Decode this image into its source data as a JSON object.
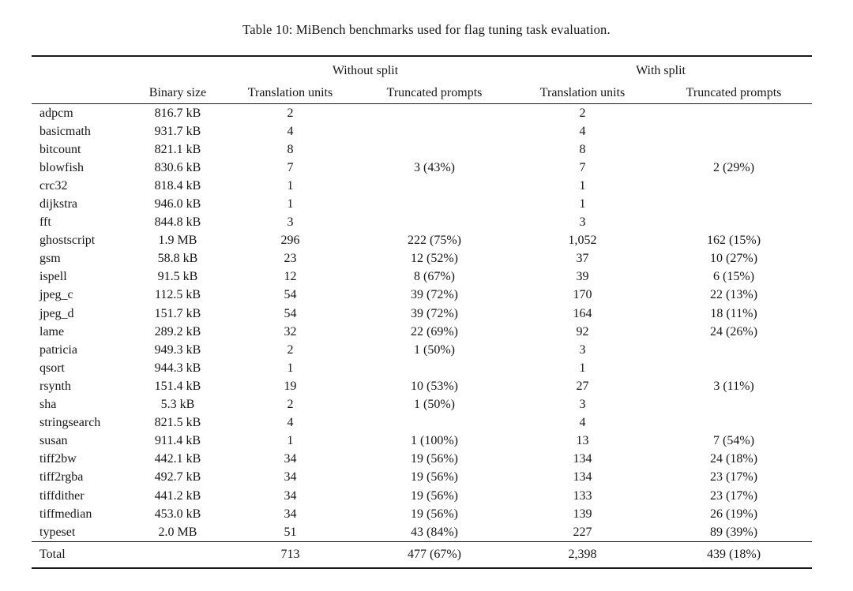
{
  "caption": "Table 10: MiBench benchmarks used for flag tuning task evaluation.",
  "table": {
    "group_headers": [
      "Without split",
      "With split"
    ],
    "column_headers": [
      "",
      "Binary size",
      "Translation units",
      "Truncated prompts",
      "Translation units",
      "Truncated prompts"
    ],
    "rows": [
      [
        "adpcm",
        "816.7 kB",
        "2",
        "",
        "2",
        ""
      ],
      [
        "basicmath",
        "931.7 kB",
        "4",
        "",
        "4",
        ""
      ],
      [
        "bitcount",
        "821.1 kB",
        "8",
        "",
        "8",
        ""
      ],
      [
        "blowfish",
        "830.6 kB",
        "7",
        "3 (43%)",
        "7",
        "2 (29%)"
      ],
      [
        "crc32",
        "818.4 kB",
        "1",
        "",
        "1",
        ""
      ],
      [
        "dijkstra",
        "946.0 kB",
        "1",
        "",
        "1",
        ""
      ],
      [
        "fft",
        "844.8 kB",
        "3",
        "",
        "3",
        ""
      ],
      [
        "ghostscript",
        "1.9 MB",
        "296",
        "222 (75%)",
        "1,052",
        "162 (15%)"
      ],
      [
        "gsm",
        "58.8 kB",
        "23",
        "12 (52%)",
        "37",
        "10 (27%)"
      ],
      [
        "ispell",
        "91.5 kB",
        "12",
        "8 (67%)",
        "39",
        "6 (15%)"
      ],
      [
        "jpeg_c",
        "112.5 kB",
        "54",
        "39 (72%)",
        "170",
        "22 (13%)"
      ],
      [
        "jpeg_d",
        "151.7 kB",
        "54",
        "39 (72%)",
        "164",
        "18 (11%)"
      ],
      [
        "lame",
        "289.2 kB",
        "32",
        "22 (69%)",
        "92",
        "24 (26%)"
      ],
      [
        "patricia",
        "949.3 kB",
        "2",
        "1 (50%)",
        "3",
        ""
      ],
      [
        "qsort",
        "944.3 kB",
        "1",
        "",
        "1",
        ""
      ],
      [
        "rsynth",
        "151.4 kB",
        "19",
        "10 (53%)",
        "27",
        "3 (11%)"
      ],
      [
        "sha",
        "5.3 kB",
        "2",
        "1 (50%)",
        "3",
        ""
      ],
      [
        "stringsearch",
        "821.5 kB",
        "4",
        "",
        "4",
        ""
      ],
      [
        "susan",
        "911.4 kB",
        "1",
        "1 (100%)",
        "13",
        "7 (54%)"
      ],
      [
        "tiff2bw",
        "442.1 kB",
        "34",
        "19 (56%)",
        "134",
        "24 (18%)"
      ],
      [
        "tiff2rgba",
        "492.7 kB",
        "34",
        "19 (56%)",
        "134",
        "23 (17%)"
      ],
      [
        "tiffdither",
        "441.2 kB",
        "34",
        "19 (56%)",
        "133",
        "23 (17%)"
      ],
      [
        "tiffmedian",
        "453.0 kB",
        "34",
        "19 (56%)",
        "139",
        "26 (19%)"
      ],
      [
        "typeset",
        "2.0 MB",
        "51",
        "43 (84%)",
        "227",
        "89 (39%)"
      ]
    ],
    "total_row": [
      "Total",
      "",
      "713",
      "477 (67%)",
      "2,398",
      "439 (18%)"
    ]
  },
  "colors": {
    "text": "#161616",
    "background": "#ffffff",
    "rule": "#1a1a1a"
  }
}
